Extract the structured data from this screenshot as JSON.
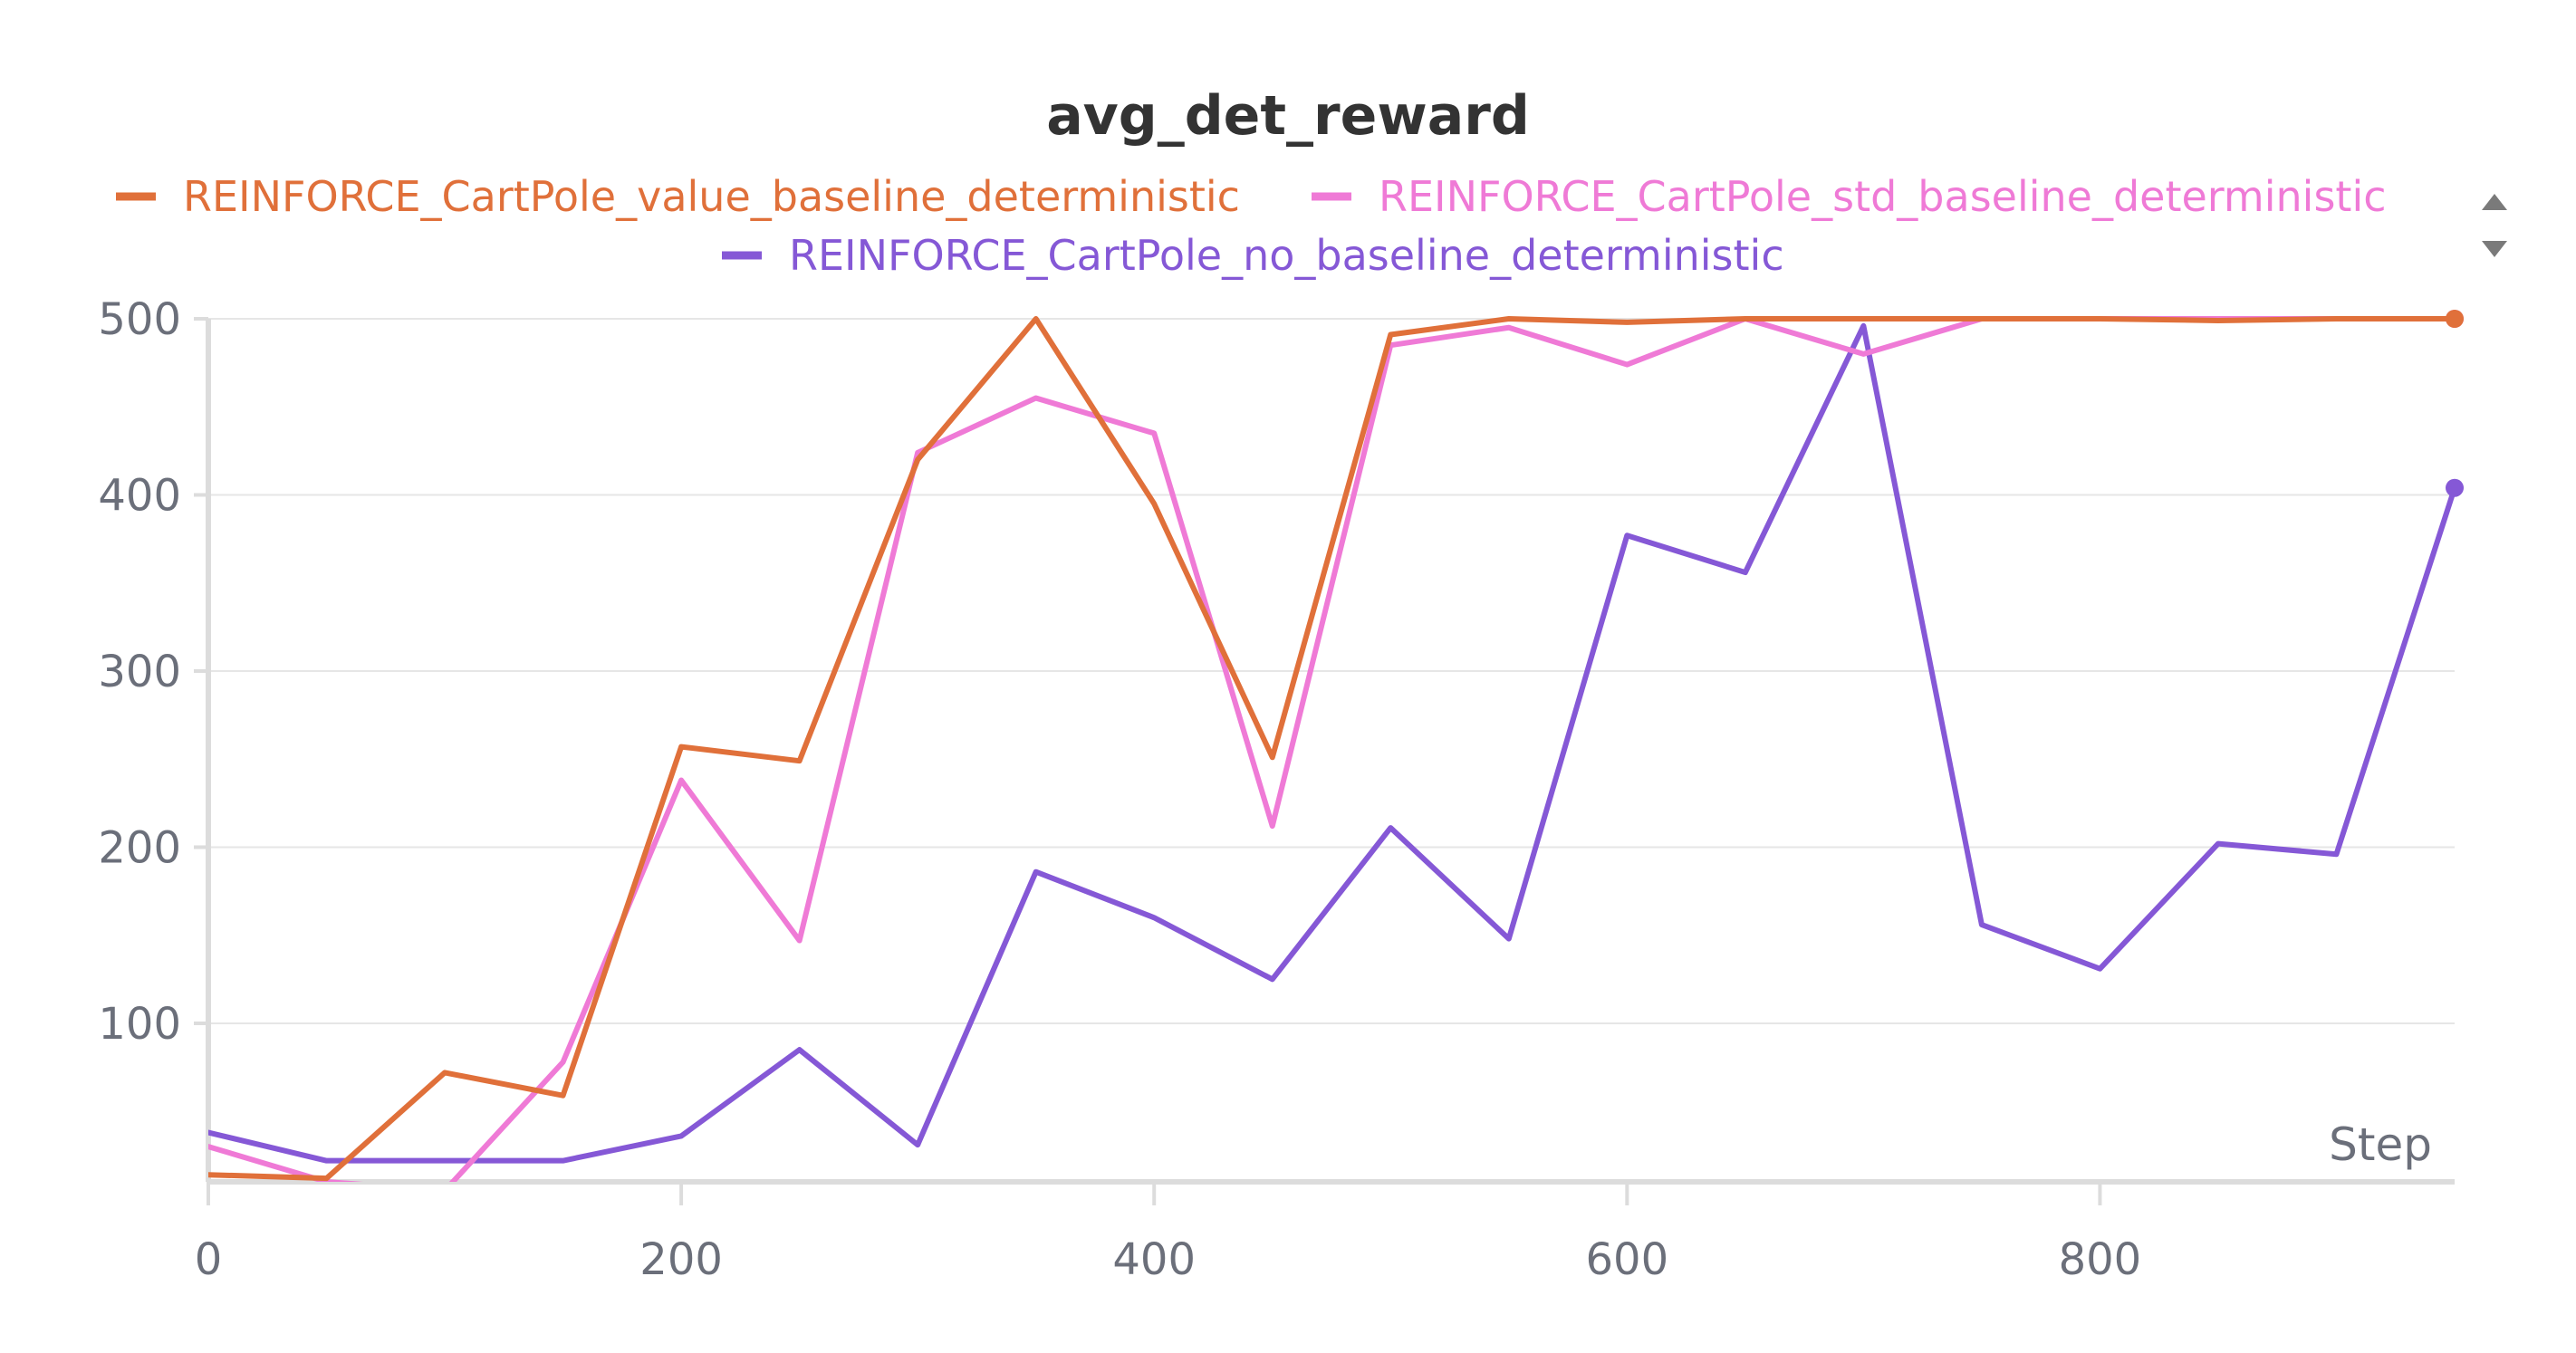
{
  "chart_data": {
    "type": "line",
    "title": "avg_det_reward",
    "xlabel": "Step",
    "ylabel": "",
    "xlim": [
      0,
      950
    ],
    "ylim": [
      10,
      500
    ],
    "xticks": [
      0,
      200,
      400,
      600,
      800
    ],
    "yticks": [
      100,
      200,
      300,
      400,
      500
    ],
    "grid": true,
    "legend_position": "top",
    "x": [
      0,
      50,
      100,
      150,
      200,
      250,
      300,
      350,
      400,
      450,
      500,
      550,
      600,
      650,
      700,
      750,
      800,
      850,
      900,
      950
    ],
    "series": [
      {
        "name": "REINFORCE_CartPole_value_baseline_deterministic",
        "color": "#e0703a",
        "values": [
          14,
          12,
          72,
          59,
          257,
          249,
          420,
          500,
          395,
          251,
          491,
          500,
          498,
          500,
          500,
          500,
          500,
          499,
          500,
          500
        ]
      },
      {
        "name": "REINFORCE_CartPole_std_baseline_deterministic",
        "color": "#ef7ad6",
        "values": [
          30,
          10,
          5,
          78,
          238,
          147,
          424,
          455,
          435,
          212,
          485,
          495,
          474,
          500,
          480,
          500,
          500,
          500,
          500,
          500
        ]
      },
      {
        "name": "REINFORCE_CartPole_no_baseline_deterministic",
        "color": "#8558d6",
        "values": [
          38,
          22,
          22,
          22,
          36,
          85,
          31,
          186,
          160,
          125,
          211,
          148,
          377,
          356,
          496,
          156,
          131,
          202,
          196,
          404
        ]
      }
    ]
  },
  "legend_scroll": {
    "up_icon": "triangle-up-icon",
    "down_icon": "triangle-down-icon"
  }
}
